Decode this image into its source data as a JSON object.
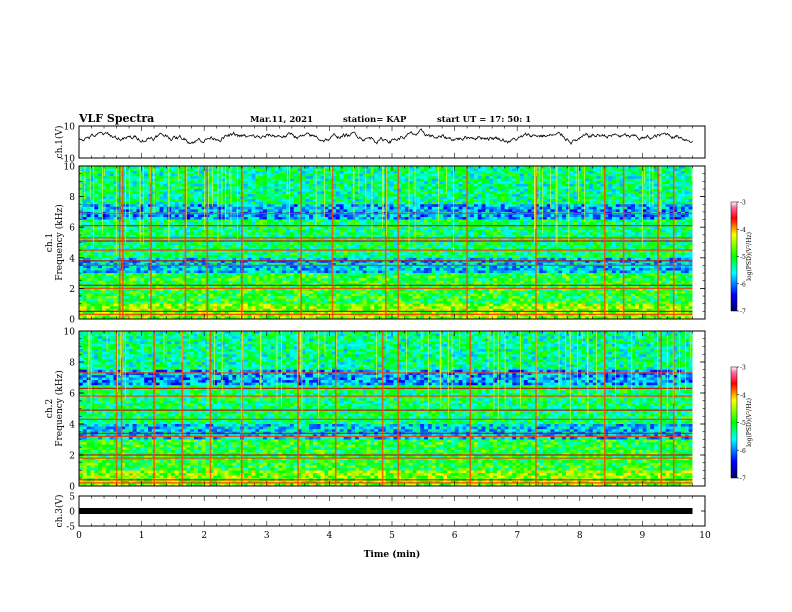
{
  "header": {
    "title": "VLF Spectra",
    "date": "Mar.11, 2021",
    "station": "station= KAP",
    "start": "start  UT =   17: 50: 1"
  },
  "chart_data": [
    {
      "type": "line",
      "panel": "ch1-waveform",
      "ylabel": "ch.1(V)",
      "ylim": [
        -10,
        10
      ],
      "yticks": [
        "10",
        "-10"
      ],
      "xlim": [
        0,
        10
      ],
      "baseline": 3.0,
      "noise_amplitude": 3.5,
      "color": "#000000"
    },
    {
      "type": "heatmap",
      "panel": "ch1-spectrogram",
      "ylabel": "ch.1\nFrequency  (kHz)",
      "ylabel_line1": "ch.1",
      "ylabel_line2": "Frequency  (kHz)",
      "ylim": [
        0,
        10
      ],
      "yticks": [
        "0",
        "2",
        "4",
        "6",
        "8",
        "10"
      ],
      "xlim": [
        0,
        9.8
      ],
      "colorbar": {
        "label": "log(PSD)(V²/Hz)",
        "ticks": [
          "-3",
          "-4",
          "-5",
          "-6",
          "-7"
        ],
        "range": [
          -7,
          -3
        ]
      },
      "bands_khz": [
        0.3,
        0.5,
        2.0,
        2.2,
        3.5,
        3.8,
        4.5,
        5.1,
        5.3,
        6.1,
        6.9
      ],
      "impulses_min": [
        0.65,
        0.7,
        1.15,
        1.7,
        2.05,
        2.6,
        3.55,
        4.05,
        4.9,
        5.1,
        6.2,
        7.3,
        8.4,
        8.7,
        9.25,
        9.5
      ]
    },
    {
      "type": "heatmap",
      "panel": "ch2-spectrogram",
      "ylabel_line1": "ch.2",
      "ylabel_line2": "Frequency  (kHz)",
      "ylim": [
        0,
        10
      ],
      "yticks": [
        "0",
        "2",
        "4",
        "6",
        "8",
        "10"
      ],
      "xlim": [
        0,
        9.8
      ],
      "colorbar": {
        "label": "log(PSD)(V²/Hz)",
        "ticks": [
          "-3",
          "-4",
          "-5",
          "-6",
          "-7"
        ],
        "range": [
          -7,
          -3
        ]
      },
      "bands_khz": [
        0.2,
        0.4,
        1.8,
        2.0,
        3.2,
        3.4,
        4.3,
        4.9,
        5.8,
        6.3,
        7.3
      ],
      "impulses_min": [
        0.6,
        0.68,
        1.2,
        1.65,
        2.1,
        2.6,
        3.5,
        4.1,
        4.85,
        5.1,
        6.25,
        7.3,
        8.4,
        9.3,
        9.5
      ]
    },
    {
      "type": "line",
      "panel": "ch3-waveform",
      "ylabel": "ch.3(V)",
      "ylim": [
        -5,
        5
      ],
      "yticks": [
        "5",
        "0",
        "-5"
      ],
      "xlim": [
        0,
        9.8
      ],
      "level": 0,
      "color": "#000000"
    }
  ],
  "xaxis": {
    "label": "Time  (min)",
    "ticks": [
      "0",
      "1",
      "2",
      "3",
      "4",
      "5",
      "6",
      "7",
      "8",
      "9",
      "10"
    ],
    "range": [
      0,
      10
    ]
  }
}
